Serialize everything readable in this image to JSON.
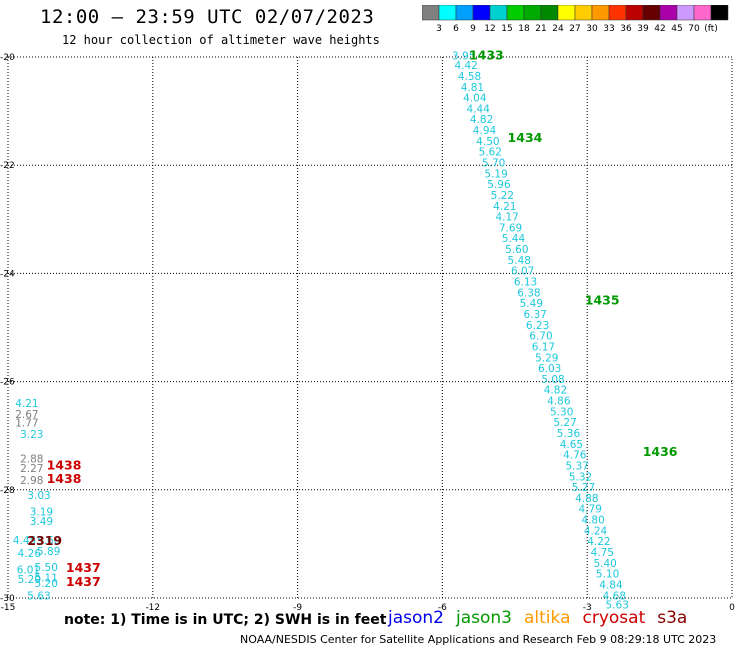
{
  "header": {
    "title": "12:00 – 23:59 UTC 02/07/2023",
    "subtitle": "12 hour collection of altimeter wave heights"
  },
  "colorbar": {
    "colors": [
      "#808080",
      "#00ffff",
      "#00a0ff",
      "#0000ff",
      "#00d0d0",
      "#00cc00",
      "#00aa00",
      "#008800",
      "#ffff00",
      "#ffcc00",
      "#ff9900",
      "#ff3300",
      "#bb0000",
      "#660000",
      "#aa00aa",
      "#cc99ff",
      "#ff66cc",
      "#000000"
    ],
    "labels": [
      "3",
      "6",
      "9",
      "12",
      "15",
      "18",
      "21",
      "24",
      "27",
      "30",
      "33",
      "36",
      "39",
      "42",
      "45",
      "70",
      "(ft)"
    ]
  },
  "note": "note:  1) Time is in UTC; 2) SWH is in feet",
  "legend": [
    {
      "name": "jason2",
      "color": "#0000ee"
    },
    {
      "name": "jason3",
      "color": "#009900"
    },
    {
      "name": "altika",
      "color": "#ff9900"
    },
    {
      "name": "cryosat",
      "color": "#cc0000"
    },
    {
      "name": "s3a",
      "color": "#880000"
    }
  ],
  "footer": "NOAA/NESDIS Center for Satellite Applications and Research    Feb  9 08:29:18 UTC 2023",
  "chart_data": {
    "type": "scatter",
    "xlim": [
      -15,
      0
    ],
    "ylim": [
      -30,
      -20
    ],
    "xticks": [
      -15,
      -12,
      -9,
      -6,
      -3,
      0
    ],
    "yticks": [
      -20,
      -22,
      -24,
      -26,
      -28,
      -30
    ],
    "grid": true,
    "series": [
      {
        "name": "jason3",
        "color": "#1ec8dc",
        "points": [
          {
            "x": -5.8,
            "y": -19.97,
            "label": "3.95"
          },
          {
            "x": -5.75,
            "y": -20.15,
            "label": "4.42"
          },
          {
            "x": -5.68,
            "y": -20.35,
            "label": "4.58"
          },
          {
            "x": -5.62,
            "y": -20.55,
            "label": "4.81"
          },
          {
            "x": -5.57,
            "y": -20.75,
            "label": "4.04"
          },
          {
            "x": -5.5,
            "y": -20.95,
            "label": "4.44"
          },
          {
            "x": -5.43,
            "y": -21.15,
            "label": "4.82"
          },
          {
            "x": -5.37,
            "y": -21.35,
            "label": "4.94"
          },
          {
            "x": -5.3,
            "y": -21.55,
            "label": "4.50"
          },
          {
            "x": -5.25,
            "y": -21.75,
            "label": "5.62"
          },
          {
            "x": -5.18,
            "y": -21.95,
            "label": "5.70"
          },
          {
            "x": -5.13,
            "y": -22.15,
            "label": "5.19"
          },
          {
            "x": -5.07,
            "y": -22.35,
            "label": "5.96"
          },
          {
            "x": -5.0,
            "y": -22.55,
            "label": "5.22"
          },
          {
            "x": -4.95,
            "y": -22.75,
            "label": "4.21"
          },
          {
            "x": -4.9,
            "y": -22.95,
            "label": "4.17"
          },
          {
            "x": -4.83,
            "y": -23.15,
            "label": "7.69"
          },
          {
            "x": -4.77,
            "y": -23.35,
            "label": "5.44"
          },
          {
            "x": -4.7,
            "y": -23.55,
            "label": "5.60"
          },
          {
            "x": -4.65,
            "y": -23.75,
            "label": "5.48"
          },
          {
            "x": -4.58,
            "y": -23.95,
            "label": "6.07"
          },
          {
            "x": -4.52,
            "y": -24.15,
            "label": "6.13"
          },
          {
            "x": -4.45,
            "y": -24.35,
            "label": "6.38"
          },
          {
            "x": -4.4,
            "y": -24.55,
            "label": "5.49"
          },
          {
            "x": -4.32,
            "y": -24.75,
            "label": "6.37"
          },
          {
            "x": -4.27,
            "y": -24.95,
            "label": "6.23"
          },
          {
            "x": -4.2,
            "y": -25.15,
            "label": "6.70"
          },
          {
            "x": -4.15,
            "y": -25.35,
            "label": "6.17"
          },
          {
            "x": -4.08,
            "y": -25.55,
            "label": "5.29"
          },
          {
            "x": -4.02,
            "y": -25.75,
            "label": "6.03"
          },
          {
            "x": -3.95,
            "y": -25.95,
            "label": "5.08"
          },
          {
            "x": -3.9,
            "y": -26.15,
            "label": "4.82"
          },
          {
            "x": -3.83,
            "y": -26.35,
            "label": "4.86"
          },
          {
            "x": -3.77,
            "y": -26.55,
            "label": "5.30"
          },
          {
            "x": -3.7,
            "y": -26.75,
            "label": "5.27"
          },
          {
            "x": -3.63,
            "y": -26.95,
            "label": "5.36"
          },
          {
            "x": -3.57,
            "y": -27.15,
            "label": "4.65"
          },
          {
            "x": -3.5,
            "y": -27.35,
            "label": "4.76"
          },
          {
            "x": -3.45,
            "y": -27.55,
            "label": "5.37"
          },
          {
            "x": -3.38,
            "y": -27.75,
            "label": "5.32"
          },
          {
            "x": -3.32,
            "y": -27.95,
            "label": "5.27"
          },
          {
            "x": -3.25,
            "y": -28.15,
            "label": "4.88"
          },
          {
            "x": -3.18,
            "y": -28.35,
            "label": "4.79"
          },
          {
            "x": -3.12,
            "y": -28.55,
            "label": "4.80"
          },
          {
            "x": -3.07,
            "y": -28.75,
            "label": "4.24"
          },
          {
            "x": -3.0,
            "y": -28.95,
            "label": "4.22"
          },
          {
            "x": -2.93,
            "y": -29.15,
            "label": "4.75"
          },
          {
            "x": -2.87,
            "y": -29.35,
            "label": "5.40"
          },
          {
            "x": -2.82,
            "y": -29.55,
            "label": "5.10"
          },
          {
            "x": -2.75,
            "y": -29.75,
            "label": "4.84"
          },
          {
            "x": -2.68,
            "y": -29.95,
            "label": "4.68"
          },
          {
            "x": -2.62,
            "y": -30.12,
            "label": "5.63"
          }
        ]
      },
      {
        "name": "",
        "color": "#1ec8dc",
        "points": [
          {
            "x": -14.85,
            "y": -26.4,
            "label": "4.21"
          },
          {
            "x": -14.75,
            "y": -26.97,
            "label": "3.23"
          },
          {
            "x": -14.6,
            "y": -28.1,
            "label": "3.03"
          },
          {
            "x": -14.55,
            "y": -28.4,
            "label": "3.19"
          },
          {
            "x": -14.55,
            "y": -28.58,
            "label": "3.49"
          },
          {
            "x": -14.9,
            "y": -28.93,
            "label": "4.45"
          },
          {
            "x": -14.4,
            "y": -28.93,
            "label": "5.60"
          },
          {
            "x": -14.8,
            "y": -29.17,
            "label": "4.26"
          },
          {
            "x": -14.4,
            "y": -29.13,
            "label": "5.89"
          },
          {
            "x": -14.82,
            "y": -29.47,
            "label": "6.01"
          },
          {
            "x": -14.45,
            "y": -29.43,
            "label": "5.50"
          },
          {
            "x": -14.8,
            "y": -29.65,
            "label": "5.20"
          },
          {
            "x": -14.45,
            "y": -29.62,
            "label": "5.11"
          },
          {
            "x": -14.45,
            "y": -29.72,
            "label": "5.20"
          },
          {
            "x": -14.6,
            "y": -29.95,
            "label": "5.63"
          }
        ]
      },
      {
        "name": "",
        "color": "#808080",
        "points": [
          {
            "x": -14.85,
            "y": -26.6,
            "label": "2.67"
          },
          {
            "x": -14.85,
            "y": -26.76,
            "label": "1.77"
          },
          {
            "x": -14.75,
            "y": -27.42,
            "label": "2.88"
          },
          {
            "x": -14.75,
            "y": -27.6,
            "label": "2.27"
          },
          {
            "x": -14.75,
            "y": -27.82,
            "label": "2.98"
          }
        ]
      }
    ],
    "passes": [
      {
        "x": -5.45,
        "y": -19.97,
        "label": "1433",
        "color": "#009900"
      },
      {
        "x": -4.65,
        "y": -21.5,
        "label": "1434",
        "color": "#009900"
      },
      {
        "x": -3.05,
        "y": -24.5,
        "label": "1435",
        "color": "#009900"
      },
      {
        "x": -1.85,
        "y": -27.3,
        "label": "1436",
        "color": "#009900"
      },
      {
        "x": -14.2,
        "y": -27.55,
        "label": "1438",
        "color": "#cc0000"
      },
      {
        "x": -14.2,
        "y": -27.8,
        "label": "1438",
        "color": "#cc0000"
      },
      {
        "x": -14.6,
        "y": -28.95,
        "label": "2319",
        "color": "#770000"
      },
      {
        "x": -13.8,
        "y": -29.45,
        "label": "1437",
        "color": "#cc0000"
      },
      {
        "x": -13.8,
        "y": -29.7,
        "label": "1437",
        "color": "#cc0000"
      }
    ]
  }
}
